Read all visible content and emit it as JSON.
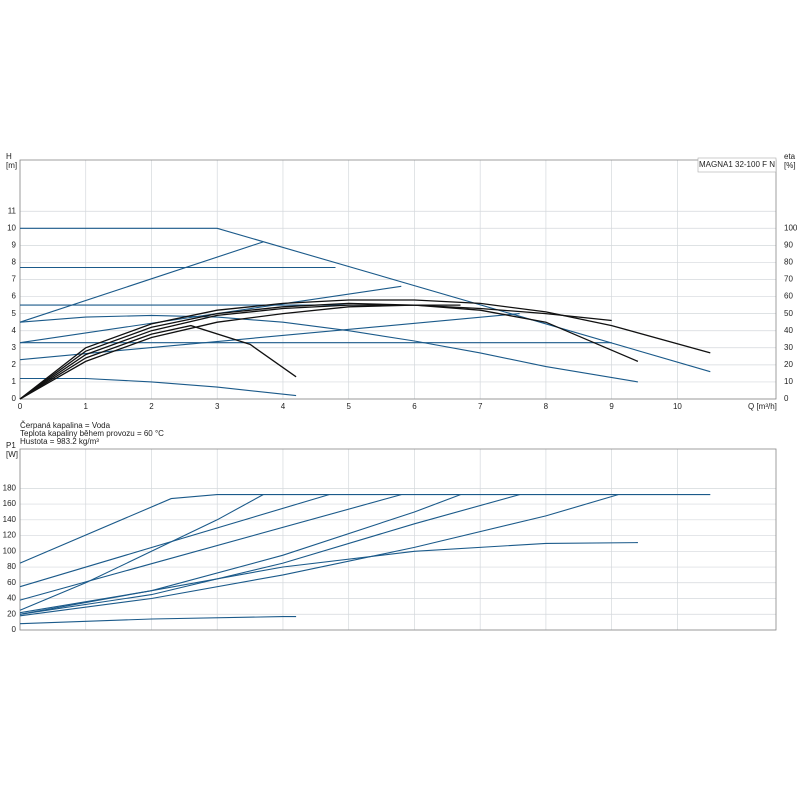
{
  "chart_data": [
    {
      "type": "line",
      "y_label": "H",
      "y_unit": "[m]",
      "y2_label": "eta",
      "y2_unit": "[%]",
      "x_label": "Q [m³/h]",
      "product": "MAGNA1 32-100 F N",
      "xlim": [
        0,
        11.5
      ],
      "xticks": [
        0,
        1,
        2,
        3,
        4,
        5,
        6,
        7,
        8,
        9,
        10
      ],
      "ylim": [
        0,
        14
      ],
      "yticks": [
        0,
        1,
        2,
        3,
        4,
        5,
        6,
        7,
        8,
        9,
        10,
        11
      ],
      "y2lim": [
        0,
        140
      ],
      "y2ticks": [
        0,
        10,
        20,
        30,
        40,
        50,
        60,
        70,
        80,
        90,
        100
      ],
      "grid": true,
      "notes": [
        "Čerpaná kapalina = Voda",
        "Teplota kapaliny během provozu = 60 °C",
        "Hustota = 983.2 kg/m³"
      ],
      "series": [
        {
          "color": "#1b5a8a",
          "x": [
            0,
            3,
            10.5
          ],
          "values": [
            10,
            10,
            1.6
          ]
        },
        {
          "color": "#1b5a8a",
          "x": [
            0,
            4.8
          ],
          "values": [
            7.7,
            7.7
          ]
        },
        {
          "color": "#1b5a8a",
          "x": [
            0,
            6.5
          ],
          "values": [
            5.5,
            5.5
          ]
        },
        {
          "color": "#1b5a8a",
          "x": [
            0,
            9
          ],
          "values": [
            3.3,
            3.3
          ]
        },
        {
          "color": "#1b5a8a",
          "x": [
            0,
            3.7
          ],
          "values": [
            4.5,
            9.2
          ]
        },
        {
          "color": "#1b5a8a",
          "x": [
            0,
            5.8
          ],
          "values": [
            3.3,
            6.6
          ]
        },
        {
          "color": "#1b5a8a",
          "x": [
            0,
            7.6
          ],
          "values": [
            2.3,
            5
          ]
        },
        {
          "color": "#1b5a8a",
          "x": [
            0,
            1,
            2,
            3,
            4,
            5,
            6,
            7,
            8,
            9.4
          ],
          "values": [
            4.5,
            4.8,
            4.9,
            4.8,
            4.5,
            4.0,
            3.4,
            2.7,
            1.9,
            1.0
          ]
        },
        {
          "color": "#1b5a8a",
          "x": [
            0,
            1,
            2,
            3,
            4.2
          ],
          "values": [
            1.2,
            1.2,
            1.0,
            0.7,
            0.2
          ]
        },
        {
          "color": "#111111",
          "axis": "y2",
          "x": [
            0,
            1,
            2,
            3,
            4,
            5,
            6,
            7,
            8,
            9,
            10.5
          ],
          "values": [
            0,
            30,
            44,
            52,
            56,
            58,
            58,
            56,
            51,
            43,
            27
          ]
        },
        {
          "color": "#111111",
          "axis": "y2",
          "x": [
            0,
            1,
            2,
            3,
            4,
            5,
            6,
            7,
            8,
            9.4
          ],
          "values": [
            0,
            28,
            42,
            50,
            54,
            56,
            55,
            52,
            45,
            22
          ]
        },
        {
          "color": "#111111",
          "axis": "y2",
          "x": [
            0,
            1,
            2,
            3,
            4,
            5,
            6,
            7,
            8,
            9
          ],
          "values": [
            0,
            26,
            40,
            49,
            53,
            55,
            55,
            53,
            50,
            46
          ]
        },
        {
          "color": "#111111",
          "axis": "y2",
          "x": [
            0,
            1,
            2,
            3,
            4,
            5,
            6,
            6.7
          ],
          "values": [
            0,
            22,
            36,
            45,
            50,
            54,
            55,
            55
          ]
        },
        {
          "color": "#111111",
          "axis": "y2",
          "x": [
            0,
            1,
            2,
            2.6,
            3.5,
            4.2
          ],
          "values": [
            0,
            24,
            38,
            43,
            32,
            13
          ]
        }
      ]
    },
    {
      "type": "line",
      "y_label": "P1",
      "y_unit": "[W]",
      "xlim": [
        0,
        11.5
      ],
      "ylim": [
        0,
        230
      ],
      "yticks": [
        0,
        20,
        40,
        60,
        80,
        100,
        120,
        140,
        160,
        180
      ],
      "grid": true,
      "series": [
        {
          "color": "#1b5a8a",
          "x": [
            0,
            2.3,
            3,
            10.5
          ],
          "values": [
            85,
            167,
            172,
            172
          ]
        },
        {
          "color": "#1b5a8a",
          "x": [
            0,
            4.7
          ],
          "values": [
            55,
            172
          ]
        },
        {
          "color": "#1b5a8a",
          "x": [
            0,
            1,
            2,
            3,
            3.7
          ],
          "values": [
            25,
            60,
            100,
            140,
            172
          ]
        },
        {
          "color": "#1b5a8a",
          "x": [
            0,
            5.8
          ],
          "values": [
            38,
            172
          ]
        },
        {
          "color": "#1b5a8a",
          "x": [
            0,
            2,
            4,
            6,
            6.7
          ],
          "values": [
            22,
            50,
            95,
            150,
            172
          ]
        },
        {
          "color": "#1b5a8a",
          "x": [
            0,
            2,
            4,
            6,
            7.6
          ],
          "values": [
            20,
            45,
            85,
            135,
            172
          ]
        },
        {
          "color": "#1b5a8a",
          "x": [
            0,
            2,
            4,
            6,
            8,
            9.1
          ],
          "values": [
            18,
            40,
            70,
            105,
            145,
            172
          ]
        },
        {
          "color": "#1b5a8a",
          "x": [
            0,
            2,
            4,
            6,
            8,
            9.4
          ],
          "values": [
            20,
            50,
            80,
            100,
            110,
            111
          ]
        },
        {
          "color": "#1b5a8a",
          "x": [
            0,
            2,
            4,
            4.2
          ],
          "values": [
            8,
            14,
            17,
            17
          ]
        }
      ]
    }
  ]
}
